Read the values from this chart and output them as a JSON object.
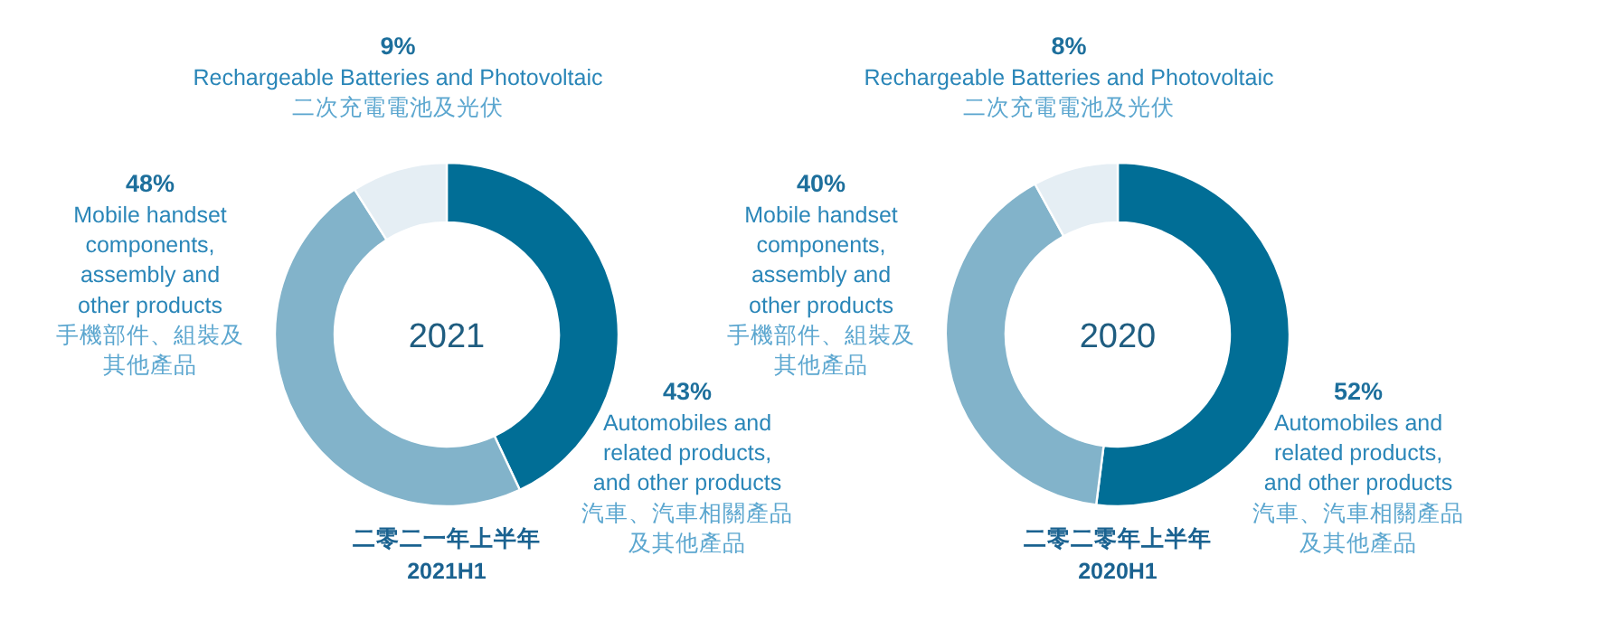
{
  "chart_data": [
    {
      "type": "donut",
      "title": "2021",
      "subtitle": "二零二一年上半年",
      "xlabel": "2021H1",
      "categories": [
        "Automobiles and\nrelated products,\nand other products\n汽車、汽車相關產品及其他產品",
        "Mobile handset\ncomponents,\nassembly and\nother products\n手機部件、組裝及其他產品",
        "Rechargeable Batteries and Photovoltaic\n二次充電電池及光伏"
      ],
      "values": [
        43,
        48,
        9
      ],
      "value_labels": [
        "43%",
        "48%",
        "9%"
      ],
      "colors": [
        "#016e96",
        "#82b3ca",
        "#e5eef4"
      ]
    },
    {
      "type": "donut",
      "title": "2020",
      "subtitle": "二零二零年上半年",
      "xlabel": "2020H1",
      "categories": [
        "Automobiles and\nrelated products,\nand other products\n汽車、汽車相關產品及其他產品",
        "Mobile handset\ncomponents,\nassembly and\nother products\n手機部件、組裝及其他產品",
        "Rechargeable Batteries and Photovoltaic\n二次充電電池及光伏"
      ],
      "values": [
        52,
        40,
        8
      ],
      "value_labels": [
        "52%",
        "40%",
        "8%"
      ],
      "colors": [
        "#016e96",
        "#82b3ca",
        "#e5eef4"
      ]
    }
  ]
}
